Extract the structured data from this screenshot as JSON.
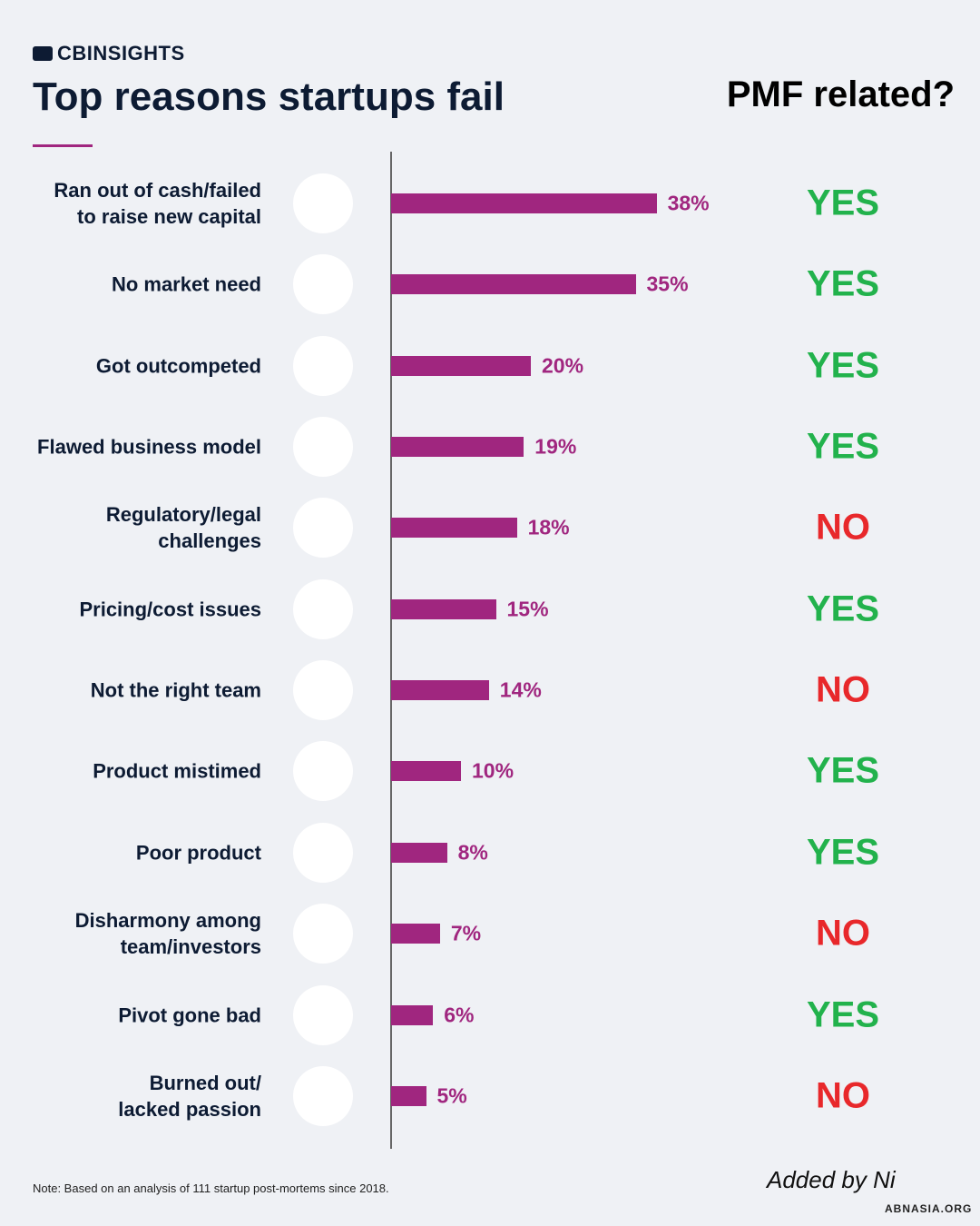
{
  "brand": "CBINSIGHTS",
  "pmf_header": "PMF related?",
  "note": "Note: Based on an analysis of 111 startup post-mortems since 2018.",
  "watermark": {
    "signature": "Added by Ni",
    "site": "ABNASIA.ORG"
  },
  "chart_data": {
    "type": "bar",
    "orientation": "horizontal",
    "title": "Top reasons startups fail",
    "categories": [
      "Ran out of cash/failed\nto raise new capital",
      "No market need",
      "Got outcompeted",
      "Flawed business model",
      "Regulatory/legal\nchallenges",
      "Pricing/cost issues",
      "Not the right team",
      "Product mistimed",
      "Poor product",
      "Disharmony among\nteam/investors",
      "Pivot gone bad",
      "Burned out/\nlacked passion"
    ],
    "values": [
      38,
      35,
      20,
      19,
      18,
      15,
      14,
      10,
      8,
      7,
      6,
      5
    ],
    "value_labels": [
      "38%",
      "35%",
      "20%",
      "19%",
      "18%",
      "15%",
      "14%",
      "10%",
      "8%",
      "7%",
      "6%",
      "5%"
    ],
    "color": "#a0267f",
    "xlim": [
      0,
      50
    ],
    "pmf": [
      "YES",
      "YES",
      "YES",
      "YES",
      "NO",
      "YES",
      "NO",
      "YES",
      "YES",
      "NO",
      "YES",
      "NO"
    ],
    "pmf_colors": [
      "#22b24c",
      "#22b24c",
      "#22b24c",
      "#22b24c",
      "#e8282b",
      "#22b24c",
      "#e8282b",
      "#22b24c",
      "#22b24c",
      "#e8282b",
      "#22b24c",
      "#e8282b"
    ]
  }
}
